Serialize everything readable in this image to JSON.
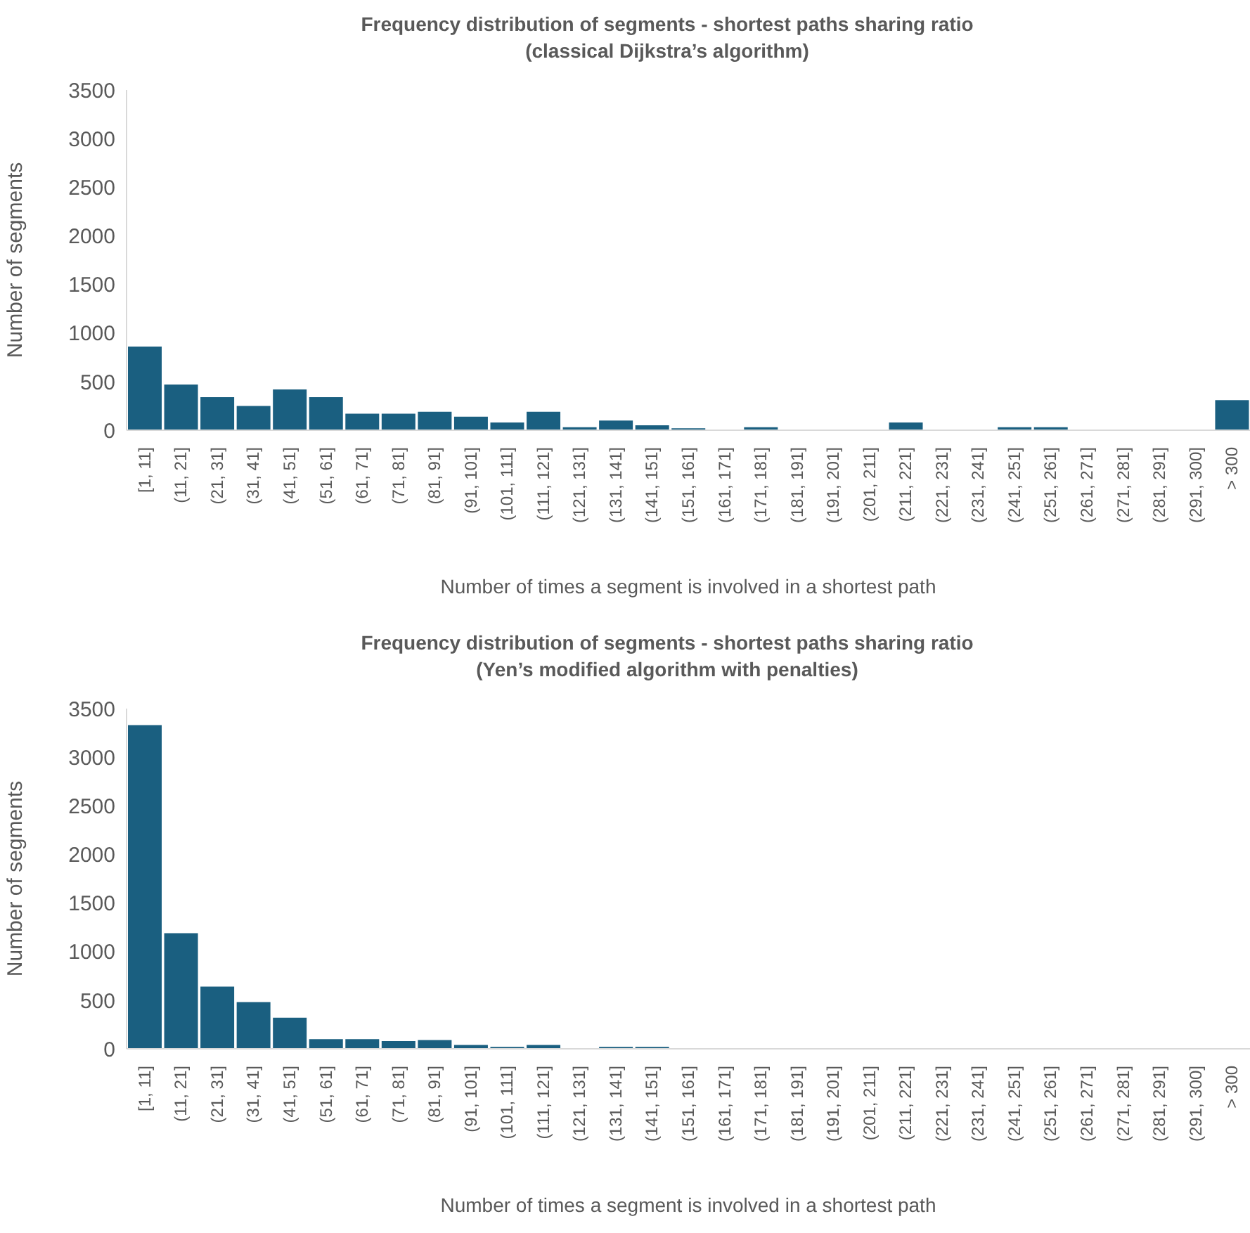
{
  "chart_data": [
    {
      "type": "bar",
      "title": "Frequency distribution of segments - shortest paths sharing ratio",
      "subtitle": "(classical Dijkstra’s algorithm)",
      "xlabel": "Number of times a segment is involved in a shortest path",
      "ylabel": "Number of segments",
      "categories": [
        "[1, 11]",
        "(11, 21]",
        "(21, 31]",
        "(31, 41]",
        "(41, 51]",
        "(51, 61]",
        "(61, 71]",
        "(71, 81]",
        "(81, 91]",
        "(91, 101]",
        "(101, 111]",
        "(111, 121]",
        "(121, 131]",
        "(131, 141]",
        "(141, 151]",
        "(151, 161]",
        "(161, 171]",
        "(171, 181]",
        "(181, 191]",
        "(191, 201]",
        "(201, 211]",
        "(211, 221]",
        "(221, 231]",
        "(231, 241]",
        "(241, 251]",
        "(251, 261]",
        "(261, 271]",
        "(271, 281]",
        "(281, 291]",
        "(291, 300]",
        "> 300"
      ],
      "values": [
        860,
        470,
        340,
        250,
        420,
        340,
        170,
        170,
        190,
        140,
        80,
        190,
        30,
        100,
        50,
        20,
        0,
        30,
        0,
        0,
        0,
        80,
        0,
        0,
        30,
        30,
        0,
        0,
        0,
        0,
        310
      ],
      "color": "#1a5f80",
      "ylim": [
        0,
        3500
      ],
      "yticks": [
        0,
        500,
        1000,
        1500,
        2000,
        2500,
        3000,
        3500
      ]
    },
    {
      "type": "bar",
      "title": "Frequency distribution of segments - shortest paths sharing ratio",
      "subtitle": "(Yen’s modified algorithm with penalties)",
      "xlabel": "Number of times a segment is involved in a shortest path",
      "ylabel": "Number of segments",
      "categories": [
        "[1, 11]",
        "(11, 21]",
        "(21, 31]",
        "(31, 41]",
        "(41, 51]",
        "(51, 61]",
        "(61, 71]",
        "(71, 81]",
        "(81, 91]",
        "(91, 101]",
        "(101, 111]",
        "(111, 121]",
        "(121, 131]",
        "(131, 141]",
        "(141, 151]",
        "(151, 161]",
        "(161, 171]",
        "(171, 181]",
        "(181, 191]",
        "(191, 201]",
        "(201, 211]",
        "(211, 221]",
        "(221, 231]",
        "(231, 241]",
        "(241, 251]",
        "(251, 261]",
        "(261, 271]",
        "(271, 281]",
        "(281, 291]",
        "(291, 300]",
        "> 300"
      ],
      "values": [
        3330,
        1190,
        640,
        480,
        320,
        100,
        100,
        80,
        90,
        40,
        20,
        40,
        0,
        20,
        20,
        0,
        0,
        0,
        0,
        0,
        0,
        0,
        0,
        0,
        0,
        0,
        0,
        0,
        0,
        0,
        0
      ],
      "color": "#1a5f80",
      "ylim": [
        0,
        3500
      ],
      "yticks": [
        0,
        500,
        1000,
        1500,
        2000,
        2500,
        3000,
        3500
      ]
    }
  ]
}
